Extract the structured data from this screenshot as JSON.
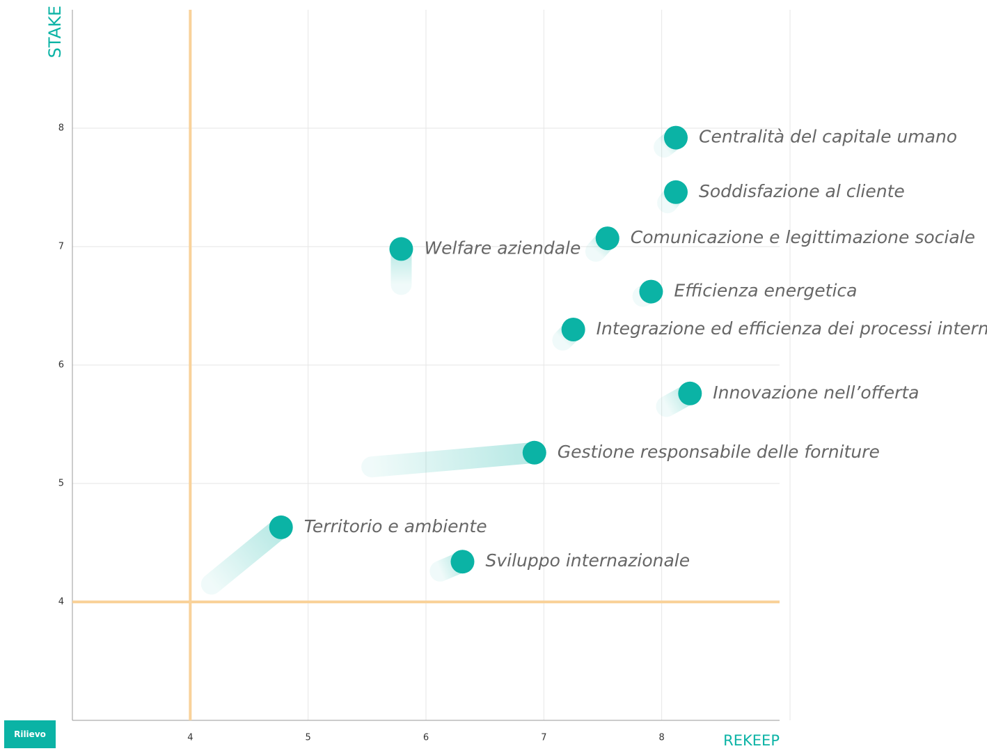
{
  "chart_data": {
    "type": "scatter",
    "x_axis_label": "REKEEP",
    "y_axis_label": "STAKE",
    "labels": [
      "Centralità del capitale umano",
      "Soddisfazione al cliente",
      "Comunicazione e legittimazione sociale",
      "Welfare aziendale",
      "Efficienza energetica",
      "Integrazione ed efficienza dei processi interni",
      "Innovazione nell’offerta",
      "Gestione responsabile delle forniture",
      "Territorio e ambiente",
      "Sviluppo internazionale"
    ],
    "x": [
      8.12,
      8.12,
      7.54,
      5.79,
      7.91,
      7.25,
      8.24,
      6.92,
      4.77,
      6.31
    ],
    "y": [
      7.92,
      7.46,
      7.07,
      6.98,
      6.62,
      6.3,
      5.76,
      5.26,
      4.63,
      4.34
    ],
    "x_from": [
      8.02,
      8.05,
      7.44,
      5.79,
      7.84,
      7.16,
      8.04,
      5.54,
      4.18,
      6.12
    ],
    "y_from": [
      7.84,
      7.37,
      6.96,
      6.68,
      6.58,
      6.21,
      5.65,
      5.14,
      4.15,
      4.26
    ],
    "color": "#0bb3a5",
    "xlim": [
      3,
      9
    ],
    "ylim": [
      3,
      9
    ],
    "xticks": [
      4,
      5,
      6,
      7,
      8
    ],
    "yticks": [
      4,
      5,
      6,
      7,
      8
    ],
    "grid": true,
    "thresholds": {
      "x": 4,
      "y": 4,
      "color": "#f9d29a"
    }
  },
  "controls": {
    "button": "Rilievo"
  }
}
